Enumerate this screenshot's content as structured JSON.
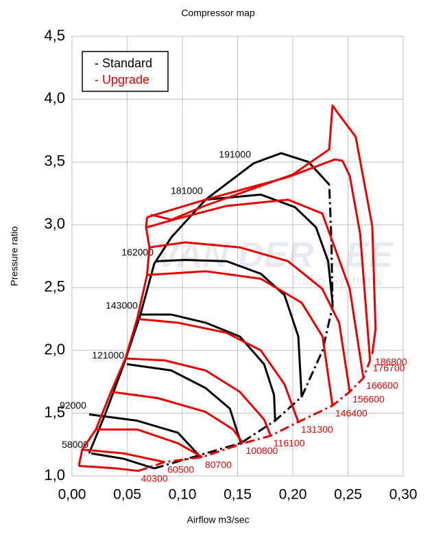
{
  "chart_data": {
    "type": "line",
    "title": "Compressor map",
    "x_label": "Airflow m3/sec",
    "y_label": "Pressure ratio",
    "xlim": [
      0,
      0.3
    ],
    "ylim": [
      1,
      4.5
    ],
    "grid": true,
    "legend": "upper left",
    "watermark": {
      "text": "VAN DER LEE",
      "subtext": "Turbo Systems"
    },
    "xticks": [
      {
        "value": 0,
        "label": "0,00"
      },
      {
        "value": 0.05,
        "label": "0,05"
      },
      {
        "value": 0.1,
        "label": "0,10"
      },
      {
        "value": 0.15,
        "label": "0,15"
      },
      {
        "value": 0.2,
        "label": "0,20"
      },
      {
        "value": 0.25,
        "label": "0,25"
      },
      {
        "value": 0.3,
        "label": "0,30"
      }
    ],
    "yticks": [
      {
        "value": 1,
        "label": "1,0"
      },
      {
        "value": 1.5,
        "label": "1,5"
      },
      {
        "value": 2,
        "label": "2,0"
      },
      {
        "value": 2.5,
        "label": "2,5"
      },
      {
        "value": 3,
        "label": "3,0"
      },
      {
        "value": 3.5,
        "label": "3,5"
      },
      {
        "value": 4,
        "label": "4,0"
      },
      {
        "value": 4.5,
        "label": "4,5"
      }
    ],
    "groups": [
      {
        "name": "- Standard",
        "color": "#000000",
        "label_at": "start",
        "lines": [
          {
            "label": "58000",
            "x": [
              0.0174,
              0.0466,
              0.0745
            ],
            "y": [
              1.18,
              1.137,
              1.06
            ]
          },
          {
            "label": "92000",
            "x": [
              0.0155,
              0.059,
              0.096,
              0.115
            ],
            "y": [
              1.49,
              1.44,
              1.344,
              1.164
            ]
          },
          {
            "label": "121000",
            "x": [
              0.0497,
              0.09,
              0.121,
              0.143,
              0.153
            ],
            "y": [
              1.89,
              1.84,
              1.7,
              1.536,
              1.262
            ]
          },
          {
            "label": "143000",
            "x": [
              0.062,
              0.09,
              0.121,
              0.152,
              0.174,
              0.183,
              0.184
            ],
            "y": [
              2.285,
              2.285,
              2.22,
              2.11,
              1.89,
              1.645,
              1.44
            ]
          },
          {
            "label": "162000",
            "x": [
              0.0764,
              0.1025,
              0.14,
              0.171,
              0.1925,
              0.205,
              0.208
            ],
            "y": [
              2.71,
              2.72,
              2.71,
              2.61,
              2.44,
              2.11,
              1.63
            ]
          },
          {
            "label": "181000",
            "x": [
              0.121,
              0.171,
              0.202,
              0.221,
              0.232,
              0.236
            ],
            "y": [
              3.2,
              3.24,
              3.14,
              2.98,
              2.71,
              2.38
            ]
          },
          {
            "label": "191000",
            "x": [
              0.1646,
              0.1894,
              0.2143,
              0.233
            ],
            "y": [
              3.49,
              3.57,
              3.5,
              3.32
            ]
          }
        ],
        "surge_line": {
          "x": [
            0.0155,
            0.03,
            0.047,
            0.062,
            0.0745,
            0.09,
            0.121,
            0.1646
          ],
          "y": [
            1.18,
            1.49,
            1.89,
            2.285,
            2.69,
            2.9,
            3.2,
            3.49
          ]
        },
        "choke_line": {
          "x": [
            0.0745,
            0.115,
            0.153,
            0.184,
            0.208,
            0.227,
            0.236,
            0.235,
            0.233
          ],
          "y": [
            1.06,
            1.164,
            1.262,
            1.44,
            1.63,
            2.0,
            2.35,
            2.87,
            3.32
          ]
        }
      },
      {
        "name": "- Upgrade",
        "color": "#e60000",
        "label_at": "end",
        "lines": [
          {
            "label": "40300",
            "x": [
              0.0062,
              0.04,
              0.06
            ],
            "y": [
              1.08,
              1.06,
              1.04
            ]
          },
          {
            "label": "60500",
            "x": [
              0.0093,
              0.0466,
              0.084
            ],
            "y": [
              1.21,
              1.18,
              1.11
            ]
          },
          {
            "label": "80700",
            "x": [
              0.0217,
              0.059,
              0.096,
              0.118
            ],
            "y": [
              1.37,
              1.37,
              1.26,
              1.15
            ]
          },
          {
            "label": "100800",
            "x": [
              0.0354,
              0.0776,
              0.121,
              0.146,
              0.155
            ],
            "y": [
              1.67,
              1.62,
              1.51,
              1.37,
              1.26
            ]
          },
          {
            "label": "116100",
            "x": [
              0.0484,
              0.084,
              0.121,
              0.152,
              0.174,
              0.18
            ],
            "y": [
              1.935,
              1.92,
              1.84,
              1.67,
              1.45,
              1.32
            ]
          },
          {
            "label": "131300",
            "x": [
              0.059,
              0.096,
              0.14,
              0.171,
              0.1925,
              0.205
            ],
            "y": [
              2.25,
              2.22,
              2.14,
              2.0,
              1.73,
              1.43
            ]
          },
          {
            "label": "146400",
            "x": [
              0.068,
              0.121,
              0.171,
              0.208,
              0.227,
              0.236
            ],
            "y": [
              2.6,
              2.63,
              2.57,
              2.38,
              2.11,
              1.56
            ]
          },
          {
            "label": "156600",
            "x": [
              0.0702,
              0.1025,
              0.152,
              0.1957,
              0.2267,
              0.242,
              0.2516
            ],
            "y": [
              2.82,
              2.86,
              2.82,
              2.71,
              2.49,
              2.22,
              1.67
            ]
          },
          {
            "label": "166600",
            "x": [
              0.068,
              0.096,
              0.14,
              0.1957,
              0.2267,
              0.2516,
              0.264
            ],
            "y": [
              2.98,
              3.05,
              3.15,
              3.2,
              3.09,
              2.49,
              1.78
            ]
          },
          {
            "label": "176700",
            "x": [
              0.068,
              0.121,
              0.1957,
              0.238,
              0.245,
              0.2516,
              0.261,
              0.27
            ],
            "y": [
              3.06,
              3.2,
              3.38,
              3.52,
              3.51,
              3.39,
              2.93,
              1.92
            ]
          },
          {
            "label": "186800",
            "x": [
              0.0714,
              0.09,
              0.12,
              0.2,
              0.233,
              0.236,
              0.24,
              0.257,
              0.272,
              0.275,
              0.272
            ],
            "y": [
              3.08,
              3.04,
              3.15,
              3.4,
              3.6,
              3.95,
              3.9,
              3.7,
              2.99,
              2.17,
              1.97
            ]
          }
        ],
        "surge_line": {
          "x": [
            0.0062,
            0.0093,
            0.0217,
            0.0354,
            0.0484,
            0.059,
            0.068,
            0.0702,
            0.0671,
            0.068
          ],
          "y": [
            1.08,
            1.21,
            1.37,
            1.67,
            1.935,
            2.25,
            2.6,
            2.82,
            2.98,
            3.06
          ]
        },
        "choke_line": {
          "x": [
            0.06,
            0.084,
            0.118,
            0.155,
            0.18,
            0.205,
            0.236,
            0.2516,
            0.264,
            0.27
          ],
          "y": [
            1.04,
            1.11,
            1.15,
            1.26,
            1.32,
            1.43,
            1.56,
            1.67,
            1.78,
            1.92
          ]
        }
      }
    ]
  }
}
